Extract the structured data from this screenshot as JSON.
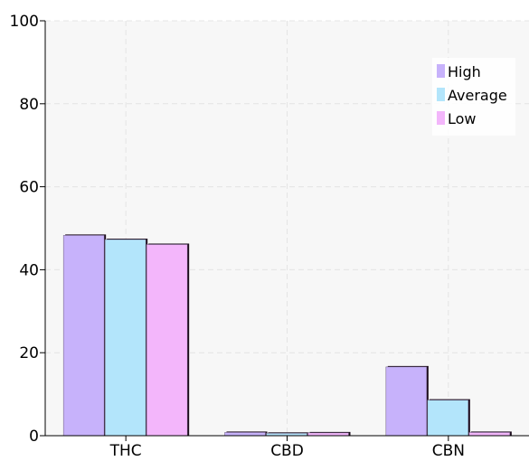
{
  "colors": {
    "plot_bg": "#f7f7f7",
    "grid": "#e4e4e4",
    "axis": "#000000",
    "bar_shadow": "#1a0a1a"
  },
  "chart_data": {
    "type": "bar",
    "title": "",
    "xlabel": "",
    "ylabel": "",
    "categories": [
      "THC",
      "CBD",
      "CBN"
    ],
    "series": [
      {
        "name": "High",
        "color": "#c7b2fb",
        "values": [
          48.5,
          1.0,
          16.8
        ]
      },
      {
        "name": "Average",
        "color": "#b3e5fb",
        "values": [
          47.5,
          0.8,
          8.8
        ]
      },
      {
        "name": "Low",
        "color": "#f3b6fb",
        "values": [
          46.3,
          0.9,
          1.0
        ]
      }
    ],
    "ylim": [
      0,
      100
    ],
    "yticks": [
      0,
      20,
      40,
      60,
      80,
      100
    ],
    "grid": true,
    "legend_position": "top-right"
  }
}
